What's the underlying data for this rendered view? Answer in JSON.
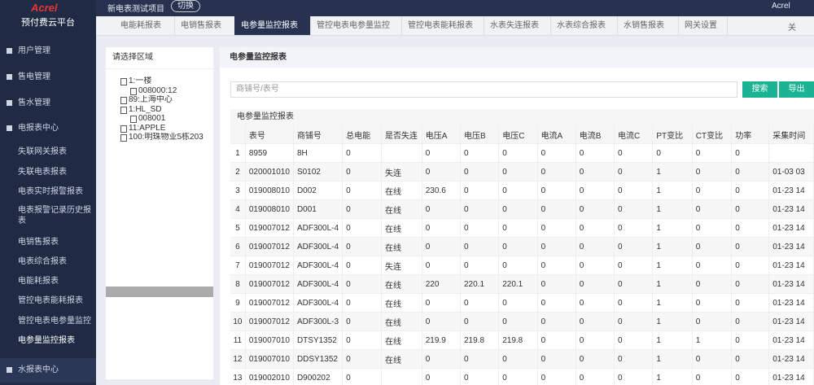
{
  "header": {
    "logo": "Acrel",
    "app_name": "预付费云平台",
    "project": "新电表测试项目",
    "switch": "切换",
    "user": "Acrel"
  },
  "sidebar": {
    "items": [
      "用户管理",
      "售电管理",
      "售水管理",
      "电报表中心"
    ],
    "subitems": [
      "失联网关报表",
      "失联电表报表",
      "电表实时报警报表",
      "电表报警记录历史报表",
      "电销售报表",
      "电表综合报表",
      "电能耗报表",
      "管控电表能耗报表",
      "管控电表电参量监控",
      "电参量监控报表"
    ],
    "bottom": "水报表中心"
  },
  "tabs": {
    "items": [
      "电能耗报表",
      "电销售报表",
      "电参量监控报表",
      "管控电表电参量监控",
      "管控电表能耗报表",
      "水表失连报表",
      "水表综合报表",
      "水销售报表",
      "网关设置"
    ],
    "active": 2,
    "close": "关"
  },
  "tree": {
    "title": "请选择区域",
    "nodes": [
      {
        "label": "1:一楼",
        "level": 0
      },
      {
        "label": "008000:12",
        "level": 1
      },
      {
        "label": "89:上海中心",
        "level": 0
      },
      {
        "label": "1:HL_SD",
        "level": 0
      },
      {
        "label": "008001",
        "level": 1
      },
      {
        "label": "11:APPLE",
        "level": 0
      },
      {
        "label": "100:明珠物业5栋203",
        "level": 0
      }
    ]
  },
  "panel": {
    "title": "电参量监控报表",
    "search_placeholder": "商铺号/表号",
    "search": "搜索",
    "export": "导出"
  },
  "table": {
    "caption": "电参量监控报表",
    "columns": [
      "表号",
      "商铺号",
      "总电能",
      "是否失连",
      "电压A",
      "电压B",
      "电压C",
      "电流A",
      "电流B",
      "电流C",
      "PT变比",
      "CT变比",
      "功率",
      "采集时间"
    ],
    "rows": [
      [
        "1",
        "8959",
        "8H",
        "0",
        null,
        "0",
        "0",
        "0",
        "0",
        "0",
        "0",
        "0",
        "0",
        "0",
        null
      ],
      [
        "2",
        "020001010",
        "S0102",
        "0",
        "失连",
        "0",
        "0",
        "0",
        "0",
        "0",
        "0",
        "1",
        "0",
        "0",
        "01-03 03"
      ],
      [
        "3",
        "019008010",
        "D002",
        "0",
        "在线",
        "230.6",
        "0",
        "0",
        "0",
        "0",
        "0",
        "1",
        "0",
        "0",
        "01-23 14"
      ],
      [
        "4",
        "019008010",
        "D001",
        "0",
        "在线",
        "0",
        "0",
        "0",
        "0",
        "0",
        "0",
        "1",
        "0",
        "0",
        "01-23 14"
      ],
      [
        "5",
        "019007012",
        "ADF300L-4",
        "0",
        "在线",
        "0",
        "0",
        "0",
        "0",
        "0",
        "0",
        "1",
        "0",
        "0",
        "01-23 14"
      ],
      [
        "6",
        "019007012",
        "ADF300L-4",
        "0",
        "在线",
        "0",
        "0",
        "0",
        "0",
        "0",
        "0",
        "1",
        "0",
        "0",
        "01-23 14"
      ],
      [
        "7",
        "019007012",
        "ADF300L-4",
        "0",
        "失连",
        "0",
        "0",
        "0",
        "0",
        "0",
        "0",
        "1",
        "0",
        "0",
        "01-23 14"
      ],
      [
        "8",
        "019007012",
        "ADF300L-4",
        "0",
        "在线",
        "220",
        "220.1",
        "220.1",
        "0",
        "0",
        "0",
        "1",
        "0",
        "0",
        "01-23 14"
      ],
      [
        "9",
        "019007012",
        "ADF300L-4",
        "0",
        "在线",
        "0",
        "0",
        "0",
        "0",
        "0",
        "0",
        "1",
        "0",
        "0",
        "01-23 14"
      ],
      [
        "10",
        "019007012",
        "ADF300L-3",
        "0",
        "在线",
        "0",
        "0",
        "0",
        "0",
        "0",
        "0",
        "1",
        "0",
        "0",
        "01-23 14"
      ],
      [
        "11",
        "019007010",
        "DTSY1352",
        "0",
        "在线",
        "219.9",
        "219.8",
        "219.8",
        "0",
        "0",
        "0",
        "1",
        "1",
        "0",
        "01-23 14"
      ],
      [
        "12",
        "019007010",
        "DDSY1352",
        "0",
        "在线",
        "0",
        "0",
        "0",
        "0",
        "0",
        "0",
        "1",
        "0",
        "0",
        "01-23 14"
      ],
      [
        "13",
        "019002010",
        "D900202",
        "0",
        null,
        "0",
        "0",
        "0",
        "0",
        "0",
        "0",
        "1",
        "0",
        "0",
        "01-23 14"
      ]
    ]
  }
}
